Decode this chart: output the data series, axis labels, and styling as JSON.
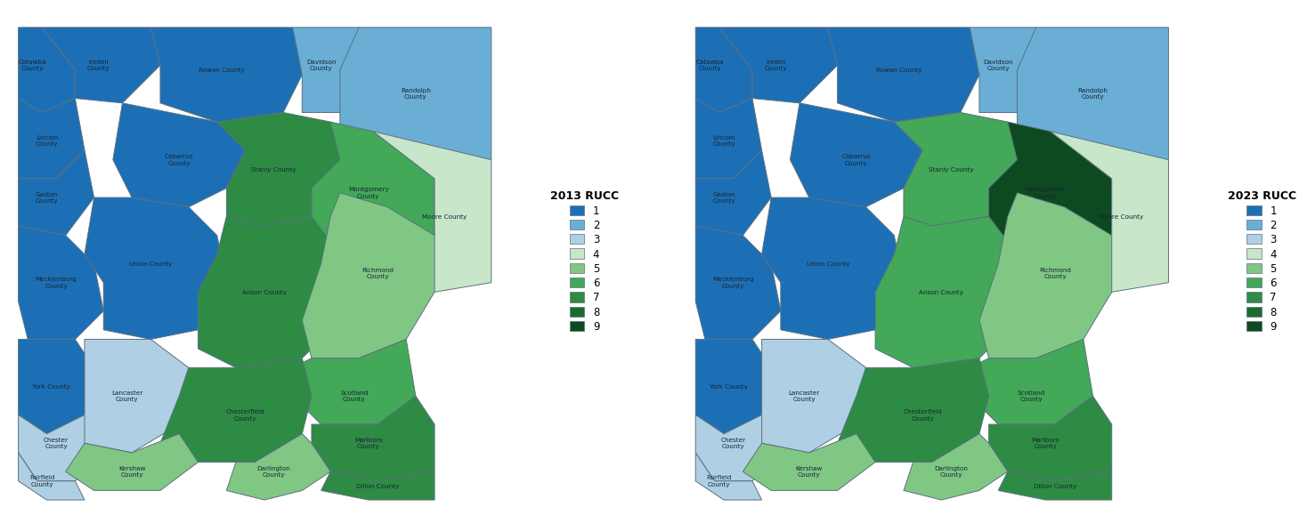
{
  "title_left": "2013 RUCC",
  "title_right": "2023 RUCC",
  "legend_labels": [
    "1",
    "2",
    "3",
    "4",
    "5",
    "6",
    "7",
    "8",
    "9"
  ],
  "rucc_colors": {
    "1": "#1d6fb5",
    "2": "#6aaed6",
    "3": "#afd0e4",
    "4": "#c8e6c9",
    "5": "#81c784",
    "6": "#43a857",
    "7": "#2e8b44",
    "8": "#1a6b30",
    "9": "#0d4a20"
  },
  "background": "#ffffff",
  "counties_2013": {
    "Catawba": {
      "rucc": 1
    },
    "Iredell": {
      "rucc": 1
    },
    "Rowan": {
      "rucc": 1
    },
    "Davidson": {
      "rucc": 2
    },
    "Randolph": {
      "rucc": 2
    },
    "Lincoln": {
      "rucc": 1
    },
    "Gaston": {
      "rucc": 1
    },
    "Cabarrus": {
      "rucc": 1
    },
    "Stanly": {
      "rucc": 7
    },
    "Montgomery": {
      "rucc": 6
    },
    "Moore": {
      "rucc": 4
    },
    "Mecklenburg": {
      "rucc": 1
    },
    "Union": {
      "rucc": 1
    },
    "Anson": {
      "rucc": 7
    },
    "Richmond": {
      "rucc": 5
    },
    "Scotland": {
      "rucc": 6
    },
    "York": {
      "rucc": 1
    },
    "Chester": {
      "rucc": 3
    },
    "Lancaster": {
      "rucc": 3
    },
    "Chesterfield": {
      "rucc": 7
    },
    "Marlboro": {
      "rucc": 7
    },
    "Fairfield": {
      "rucc": 3
    },
    "Kershaw": {
      "rucc": 5
    },
    "Darlington": {
      "rucc": 5
    },
    "Dillon": {
      "rucc": 7
    }
  },
  "counties_2023": {
    "Catawba": {
      "rucc": 1
    },
    "Iredell": {
      "rucc": 1
    },
    "Rowan": {
      "rucc": 1
    },
    "Davidson": {
      "rucc": 2
    },
    "Randolph": {
      "rucc": 2
    },
    "Lincoln": {
      "rucc": 1
    },
    "Gaston": {
      "rucc": 1
    },
    "Cabarrus": {
      "rucc": 1
    },
    "Stanly": {
      "rucc": 6
    },
    "Montgomery": {
      "rucc": 9
    },
    "Moore": {
      "rucc": 4
    },
    "Mecklenburg": {
      "rucc": 1
    },
    "Union": {
      "rucc": 1
    },
    "Anson": {
      "rucc": 6
    },
    "Richmond": {
      "rucc": 5
    },
    "Scotland": {
      "rucc": 6
    },
    "York": {
      "rucc": 1
    },
    "Chester": {
      "rucc": 3
    },
    "Lancaster": {
      "rucc": 3
    },
    "Chesterfield": {
      "rucc": 7
    },
    "Marlboro": {
      "rucc": 7
    },
    "Fairfield": {
      "rucc": 3
    },
    "Kershaw": {
      "rucc": 5
    },
    "Darlington": {
      "rucc": 5
    },
    "Dillon": {
      "rucc": 7
    }
  },
  "text_color": "#152535",
  "border_color": "#5a7080",
  "border_lw": 0.7
}
